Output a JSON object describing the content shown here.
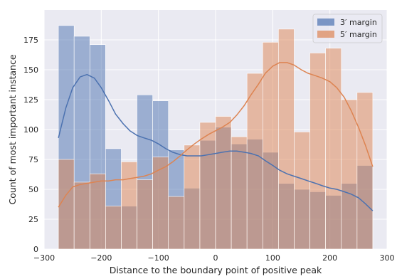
{
  "chart_data": {
    "type": "bar",
    "subtype": "overlaid histogram with KDE lines",
    "title": "",
    "xlabel": "Distance to the boundary point of positive peak",
    "ylabel": "Count of most important instance",
    "xlim": [
      -300,
      300
    ],
    "ylim": [
      0,
      200
    ],
    "xticks": [
      -300,
      -200,
      -100,
      0,
      100,
      200,
      300
    ],
    "xtick_labels": [
      "−300",
      "−200",
      "−100",
      "0",
      "100",
      "200",
      "300"
    ],
    "yticks": [
      0,
      25,
      50,
      75,
      100,
      125,
      150,
      175
    ],
    "ytick_labels": [
      "0",
      "25",
      "50",
      "75",
      "100",
      "125",
      "150",
      "175"
    ],
    "grid": true,
    "legend_position": "top-right",
    "bins": {
      "start": -275,
      "width": 27.5,
      "count": 20
    },
    "series": [
      {
        "name": "3′ margin",
        "color": "#4c72b0",
        "values": [
          187,
          178,
          171,
          84,
          36,
          129,
          124,
          83,
          51,
          91,
          102,
          88,
          92,
          81,
          55,
          50,
          48,
          45,
          55,
          70
        ],
        "kde": [
          [
            -275,
            93
          ],
          [
            -262,
            118
          ],
          [
            -250,
            135
          ],
          [
            -237,
            144
          ],
          [
            -225,
            146
          ],
          [
            -212,
            143
          ],
          [
            -200,
            135
          ],
          [
            -187,
            124
          ],
          [
            -175,
            113
          ],
          [
            -162,
            105
          ],
          [
            -150,
            99
          ],
          [
            -137,
            95
          ],
          [
            -125,
            93
          ],
          [
            -112,
            91
          ],
          [
            -100,
            88
          ],
          [
            -87,
            84
          ],
          [
            -75,
            81
          ],
          [
            -62,
            79
          ],
          [
            -50,
            78
          ],
          [
            -37,
            78
          ],
          [
            -25,
            78
          ],
          [
            -12,
            79
          ],
          [
            0,
            80
          ],
          [
            12,
            81
          ],
          [
            25,
            82
          ],
          [
            37,
            82
          ],
          [
            50,
            81
          ],
          [
            62,
            80
          ],
          [
            75,
            78
          ],
          [
            87,
            74
          ],
          [
            100,
            70
          ],
          [
            112,
            66
          ],
          [
            125,
            63
          ],
          [
            137,
            61
          ],
          [
            150,
            59
          ],
          [
            162,
            57
          ],
          [
            175,
            55
          ],
          [
            187,
            53
          ],
          [
            200,
            51
          ],
          [
            212,
            50
          ],
          [
            225,
            48
          ],
          [
            237,
            46
          ],
          [
            250,
            43
          ],
          [
            262,
            38
          ],
          [
            275,
            32
          ]
        ]
      },
      {
        "name": "5′ margin",
        "color": "#dd8452",
        "values": [
          75,
          56,
          63,
          36,
          73,
          58,
          77,
          44,
          87,
          106,
          111,
          94,
          147,
          173,
          184,
          98,
          164,
          168,
          125,
          131
        ],
        "kde": [
          [
            -275,
            35
          ],
          [
            -262,
            45
          ],
          [
            -250,
            52
          ],
          [
            -237,
            54
          ],
          [
            -225,
            55
          ],
          [
            -212,
            56
          ],
          [
            -200,
            57
          ],
          [
            -187,
            57
          ],
          [
            -175,
            58
          ],
          [
            -162,
            58
          ],
          [
            -150,
            59
          ],
          [
            -137,
            60
          ],
          [
            -125,
            61
          ],
          [
            -112,
            63
          ],
          [
            -100,
            66
          ],
          [
            -87,
            69
          ],
          [
            -75,
            73
          ],
          [
            -62,
            78
          ],
          [
            -50,
            83
          ],
          [
            -37,
            88
          ],
          [
            -25,
            92
          ],
          [
            -12,
            96
          ],
          [
            0,
            99
          ],
          [
            12,
            102
          ],
          [
            25,
            106
          ],
          [
            37,
            112
          ],
          [
            50,
            120
          ],
          [
            62,
            129
          ],
          [
            75,
            138
          ],
          [
            87,
            147
          ],
          [
            100,
            153
          ],
          [
            112,
            156
          ],
          [
            125,
            156
          ],
          [
            137,
            154
          ],
          [
            150,
            150
          ],
          [
            162,
            147
          ],
          [
            175,
            145
          ],
          [
            187,
            143
          ],
          [
            200,
            140
          ],
          [
            212,
            135
          ],
          [
            225,
            127
          ],
          [
            237,
            116
          ],
          [
            250,
            102
          ],
          [
            262,
            87
          ],
          [
            275,
            69
          ]
        ]
      }
    ]
  }
}
